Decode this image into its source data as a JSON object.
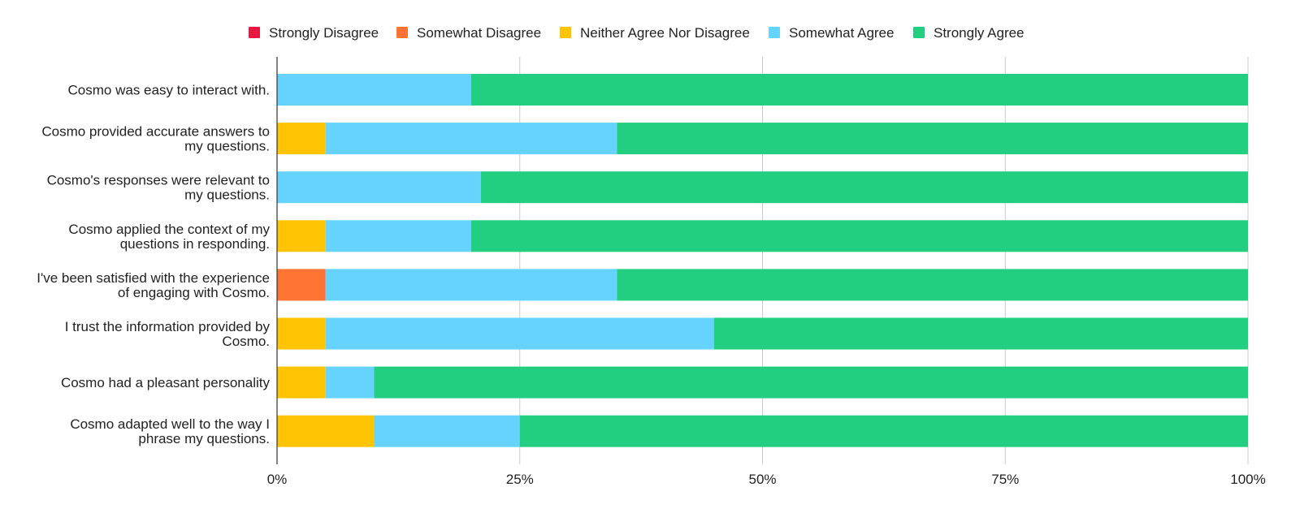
{
  "chart_data": {
    "type": "bar",
    "orientation": "horizontal",
    "stacked": "percent",
    "title": "",
    "xlabel": "",
    "ylabel": "",
    "xlim": [
      0,
      100
    ],
    "x_ticks": [
      "0%",
      "25%",
      "50%",
      "75%",
      "100%"
    ],
    "grid": true,
    "legend_position": "top",
    "categories": [
      "Cosmo was easy to interact with.",
      "Cosmo provided accurate answers to my questions.",
      "Cosmo's responses were relevant to my questions.",
      "Cosmo applied the context of my questions in responding.",
      "I've been satisfied with the experience of engaging with Cosmo.",
      "I trust the information provided by Cosmo.",
      "Cosmo had a pleasant personality",
      "Cosmo adapted well to the way I phrase my questions."
    ],
    "category_lines": [
      [
        "Cosmo was easy to interact with."
      ],
      [
        "Cosmo provided accurate answers to",
        "my questions."
      ],
      [
        "Cosmo's responses were relevant to",
        "my questions."
      ],
      [
        "Cosmo applied the context of my",
        "questions in responding."
      ],
      [
        "I've been satisfied with the experience",
        "of engaging with Cosmo."
      ],
      [
        "I trust the information provided by",
        "Cosmo."
      ],
      [
        "Cosmo had a pleasant personality"
      ],
      [
        "Cosmo adapted well to the way I",
        "phrase my questions."
      ]
    ],
    "series": [
      {
        "name": "Strongly Disagree",
        "color": "#e8173f",
        "values": [
          0,
          0,
          0,
          0,
          0,
          0,
          0,
          0
        ]
      },
      {
        "name": "Somewhat Disagree",
        "color": "#ff7433",
        "values": [
          0,
          0,
          0,
          0,
          5,
          0,
          0,
          0
        ]
      },
      {
        "name": "Neither Agree Nor Disagree",
        "color": "#ffc505",
        "values": [
          0,
          5,
          0,
          5,
          0,
          5,
          5,
          10
        ]
      },
      {
        "name": "Somewhat Agree",
        "color": "#66d3ff",
        "values": [
          20,
          30,
          21,
          15,
          30,
          40,
          5,
          15
        ]
      },
      {
        "name": "Strongly Agree",
        "color": "#22cf80",
        "values": [
          80,
          65,
          79,
          80,
          65,
          55,
          90,
          75
        ]
      }
    ]
  }
}
